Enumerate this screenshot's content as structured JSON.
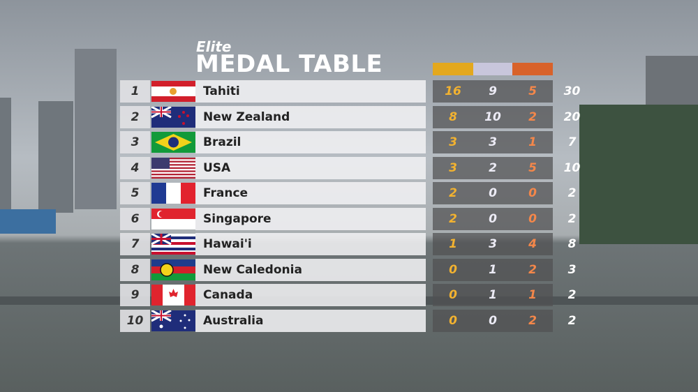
{
  "header": {
    "subtitle": "Elite",
    "title": "MEDAL TABLE"
  },
  "table": {
    "rows": [
      [
        1,
        "Tahiti",
        16,
        9,
        5,
        30
      ],
      [
        2,
        "New Zealand",
        8,
        10,
        2,
        20
      ],
      [
        3,
        "Brazil",
        3,
        3,
        1,
        7
      ],
      [
        4,
        "USA",
        3,
        2,
        5,
        10
      ],
      [
        5,
        "France",
        2,
        0,
        0,
        2
      ],
      [
        6,
        "Singapore",
        2,
        0,
        0,
        2
      ],
      [
        7,
        "Hawai'i",
        1,
        3,
        4,
        8
      ],
      [
        8,
        "New Caledonia",
        0,
        1,
        2,
        3
      ],
      [
        9,
        "Canada",
        0,
        1,
        1,
        2
      ],
      [
        10,
        "Australia",
        0,
        0,
        2,
        2
      ]
    ]
  }
}
